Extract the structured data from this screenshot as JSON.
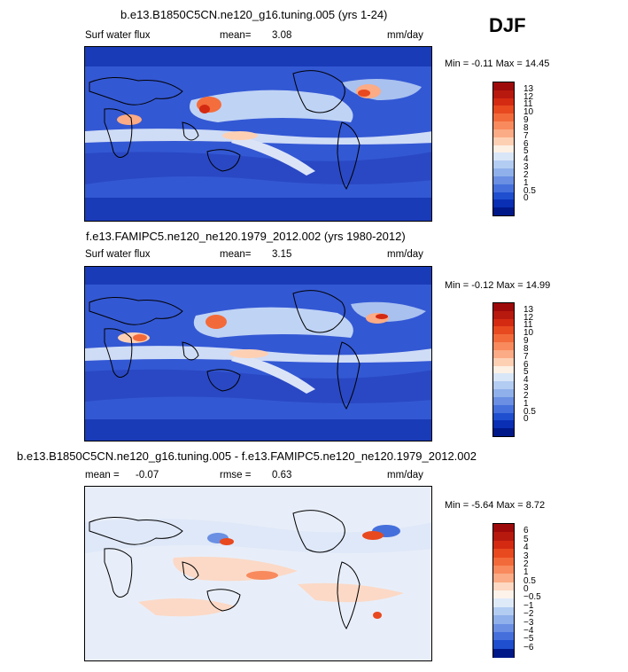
{
  "season": "DJF",
  "panels": [
    {
      "title": "b.e13.B1850C5CN.ne120_g16.tuning.005 (yrs 1-24)",
      "variable": "Surf water flux",
      "mean_label": "mean=",
      "mean_value": "3.08",
      "units": "mm/day",
      "minmax": "Min =  -0.11 Max =  14.45"
    },
    {
      "title": "f.e13.FAMIPC5.ne120_ne120.1979_2012.002 (yrs 1980-2012)",
      "variable": "Surf water flux",
      "mean_label": "mean=",
      "mean_value": "3.15",
      "units": "mm/day",
      "minmax": "Min =  -0.12 Max =  14.99"
    },
    {
      "title": "b.e13.B1850C5CN.ne120_g16.tuning.005 - f.e13.FAMIPC5.ne120_ne120.1979_2012.002",
      "mean_label": "mean =",
      "mean_value": "-0.07",
      "rmse_label": "rmse =",
      "rmse_value": "0.63",
      "units": "mm/day",
      "minmax": "Min =  -5.64 Max =   8.72"
    }
  ],
  "colorbars": {
    "abs": {
      "labels": [
        "13",
        "12",
        "11",
        "10",
        "9",
        "8",
        "7",
        "6",
        "5",
        "4",
        "3",
        "2",
        "1",
        "0.5",
        "0"
      ],
      "colors": [
        "#9e0a0a",
        "#b8190f",
        "#d42a12",
        "#e8491f",
        "#f36a3a",
        "#f88a5d",
        "#fbab85",
        "#fdd0b4",
        "#fdf0e4",
        "#d8e6f8",
        "#b3ccf2",
        "#8fb0ea",
        "#6a8fe3",
        "#4570dc",
        "#1f4fcf",
        "#0a2fb5",
        "#001888"
      ]
    },
    "diff": {
      "labels": [
        "6",
        "5",
        "4",
        "3",
        "2",
        "1",
        "0.5",
        "0",
        "−0.5",
        "−1",
        "−2",
        "−3",
        "−4",
        "−5",
        "−6"
      ],
      "colors": [
        "#9e0a0a",
        "#b8190f",
        "#d42a12",
        "#e8491f",
        "#f36a3a",
        "#f88a5d",
        "#fbab85",
        "#fdd8c2",
        "#fdf3ea",
        "#dfeaf9",
        "#b3ccf2",
        "#8fb0ea",
        "#6a8fe3",
        "#4570dc",
        "#1f4fcf",
        "#001888"
      ]
    }
  }
}
